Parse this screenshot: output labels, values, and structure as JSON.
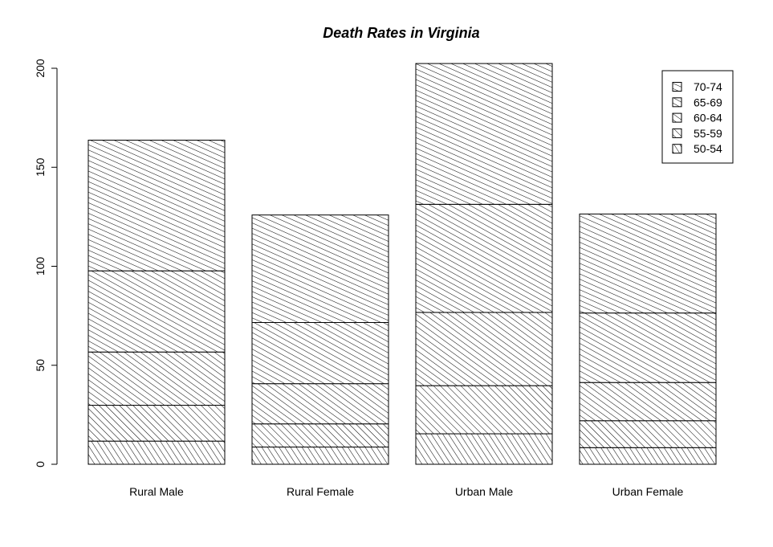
{
  "chart_data": {
    "type": "bar",
    "stacked": true,
    "title": "Death Rates in Virginia",
    "xlabel": "",
    "ylabel": "",
    "categories": [
      "Rural Male",
      "Rural Female",
      "Urban Male",
      "Urban Female"
    ],
    "series": [
      {
        "name": "50-54",
        "values": [
          11.7,
          8.7,
          15.4,
          8.4
        ],
        "hatch_angle": -33
      },
      {
        "name": "55-59",
        "values": [
          18.1,
          11.7,
          24.3,
          13.6
        ],
        "hatch_angle": -45
      },
      {
        "name": "60-64",
        "values": [
          26.9,
          20.3,
          37.0,
          19.3
        ],
        "hatch_angle": -54
      },
      {
        "name": "65-69",
        "values": [
          41.0,
          30.9,
          54.6,
          35.1
        ],
        "hatch_angle": -61
      },
      {
        "name": "70-74",
        "values": [
          66.0,
          54.3,
          71.1,
          50.0
        ],
        "hatch_angle": -66
      }
    ],
    "ylim": [
      0,
      200
    ],
    "yticks": [
      0,
      50,
      100,
      150,
      200
    ],
    "grid": false,
    "legend_position": "top-right",
    "legend_order": [
      "70-74",
      "65-69",
      "60-64",
      "55-59",
      "50-54"
    ],
    "fill_color": "#ffffff",
    "line_color": "#000000"
  }
}
